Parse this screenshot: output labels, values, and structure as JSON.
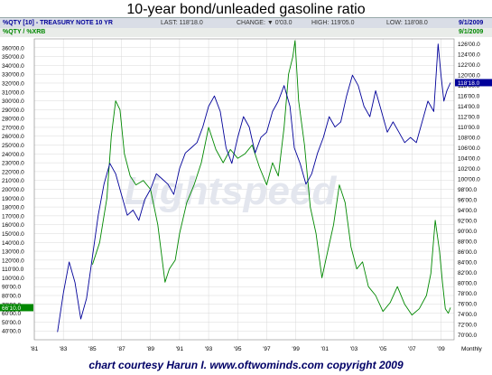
{
  "title": "10-year bond/unleaded gasoline ratio",
  "header": {
    "symbol": "%QTY [10] - TREASURY NOTE 10 YR",
    "last": "LAST: 118'18.0",
    "change": "CHANGE: ▼ 0'03.0",
    "high": "HIGH: 119'05.0",
    "low": "LOW: 118'08.0",
    "date": "9/1/2009",
    "sub_symbol": "%QTY / %XRB",
    "sub_date": "9/1/2009"
  },
  "watermark": "Lightspeed",
  "footer": "chart courtesy Harun I.  www.oftwominds.com  copyright 2009",
  "colors": {
    "bond": "#000099",
    "ratio": "#008800",
    "bond_label_bg": "#000099",
    "ratio_label_bg": "#008800"
  },
  "chart_data": {
    "type": "line",
    "x_tick_labels": [
      "'81",
      "'83",
      "'85",
      "'87",
      "'89",
      "'91",
      "'93",
      "'95",
      "'97",
      "'99",
      "'01",
      "'03",
      "'05",
      "'07",
      "'09",
      "Monthly"
    ],
    "x_tick_years": [
      1981,
      1983,
      1985,
      1987,
      1989,
      1991,
      1993,
      1995,
      1997,
      1999,
      2001,
      2003,
      2005,
      2007,
      2009
    ],
    "x_range": [
      1981,
      2009.9
    ],
    "left_axis": {
      "ylim": [
        30,
        370
      ],
      "tick_labels": [
        "360'00.0",
        "350'00.0",
        "340'00.0",
        "330'00.0",
        "320'00.0",
        "310'00.0",
        "300'00.0",
        "290'00.0",
        "280'00.0",
        "270'00.0",
        "260'00.0",
        "250'00.0",
        "240'00.0",
        "230'00.0",
        "220'00.0",
        "210'00.0",
        "200'00.0",
        "190'00.0",
        "180'00.0",
        "170'00.0",
        "160'00.0",
        "150'00.0",
        "140'00.0",
        "130'00.0",
        "120'00.0",
        "110'00.0",
        "100'00.0",
        "90'00.0",
        "80'00.0",
        "70'00.0",
        "60'00.0",
        "50'00.0",
        "40'00.0"
      ],
      "tick_values": [
        360,
        350,
        340,
        330,
        320,
        310,
        300,
        290,
        280,
        270,
        260,
        250,
        240,
        230,
        220,
        210,
        200,
        190,
        180,
        170,
        160,
        150,
        140,
        130,
        120,
        110,
        100,
        90,
        80,
        70,
        60,
        50,
        40
      ],
      "last_value_label": "66'10.0",
      "last_value": 66.3
    },
    "right_axis": {
      "ylim": [
        69,
        127
      ],
      "tick_labels": [
        "126'00.0",
        "124'00.0",
        "122'00.0",
        "120'00.0",
        "118'00.0",
        "116'00.0",
        "114'00.0",
        "112'00.0",
        "110'00.0",
        "108'00.0",
        "106'00.0",
        "104'00.0",
        "102'00.0",
        "100'00.0",
        "98'00.0",
        "96'00.0",
        "94'00.0",
        "92'00.0",
        "90'00.0",
        "88'00.0",
        "86'00.0",
        "84'00.0",
        "82'00.0",
        "80'00.0",
        "78'00.0",
        "76'00.0",
        "74'00.0",
        "72'00.0",
        "70'00.0"
      ],
      "tick_values": [
        126,
        124,
        122,
        120,
        118,
        116,
        114,
        112,
        110,
        108,
        106,
        104,
        102,
        100,
        98,
        96,
        94,
        92,
        90,
        88,
        86,
        84,
        82,
        80,
        78,
        76,
        74,
        72,
        70
      ],
      "last_value_label": "118'18.0",
      "last_value": 118.56
    },
    "series": [
      {
        "name": "%QTY [10] - TREASURY NOTE 10 YR",
        "axis": "right",
        "x": [
          1982.6,
          1983.0,
          1983.4,
          1983.8,
          1984.2,
          1984.6,
          1985.0,
          1985.4,
          1985.8,
          1986.2,
          1986.6,
          1987.0,
          1987.4,
          1987.8,
          1988.2,
          1988.6,
          1989.0,
          1989.4,
          1989.8,
          1990.2,
          1990.6,
          1991.0,
          1991.4,
          1991.8,
          1992.2,
          1992.6,
          1993.0,
          1993.4,
          1993.8,
          1994.2,
          1994.6,
          1995.0,
          1995.4,
          1995.8,
          1996.2,
          1996.6,
          1997.0,
          1997.4,
          1997.8,
          1998.2,
          1998.6,
          1998.9,
          1999.3,
          1999.7,
          2000.1,
          2000.5,
          2000.9,
          2001.3,
          2001.7,
          2002.1,
          2002.5,
          2002.9,
          2003.3,
          2003.7,
          2004.1,
          2004.5,
          2004.9,
          2005.3,
          2005.7,
          2006.1,
          2006.5,
          2006.9,
          2007.3,
          2007.7,
          2008.1,
          2008.5,
          2008.8,
          2009.0,
          2009.2,
          2009.4,
          2009.65
        ],
        "y": [
          70.5,
          78,
          84,
          80,
          73,
          77,
          85,
          93,
          99,
          103,
          101,
          97,
          93,
          94,
          92,
          96,
          98,
          101,
          100,
          99,
          97,
          102,
          105,
          106,
          107,
          110,
          114,
          116,
          113,
          106,
          103,
          108,
          112,
          110,
          105,
          108,
          109,
          113,
          115,
          118,
          114,
          106,
          103,
          99,
          101,
          105,
          108,
          112,
          110,
          111,
          116,
          120,
          118,
          114,
          112,
          117,
          113,
          109,
          111,
          109,
          107,
          108,
          107,
          111,
          115,
          113,
          126,
          120,
          115,
          117,
          118.56
        ]
      },
      {
        "name": "%QTY / %XRB",
        "axis": "left",
        "x": [
          1985.0,
          1985.5,
          1986.0,
          1986.3,
          1986.6,
          1986.9,
          1987.2,
          1987.6,
          1988.0,
          1988.5,
          1989.0,
          1989.5,
          1990.0,
          1990.3,
          1990.7,
          1991.0,
          1991.5,
          1992.0,
          1992.5,
          1993.0,
          1993.5,
          1994.0,
          1994.5,
          1995.0,
          1995.5,
          1996.0,
          1996.5,
          1997.0,
          1997.4,
          1997.8,
          1998.2,
          1998.5,
          1998.8,
          1998.95,
          1999.2,
          1999.6,
          2000.0,
          2000.4,
          2000.8,
          2001.2,
          2001.6,
          2002.0,
          2002.4,
          2002.8,
          2003.2,
          2003.6,
          2004.0,
          2004.5,
          2005.0,
          2005.5,
          2006.0,
          2006.5,
          2007.0,
          2007.5,
          2008.0,
          2008.3,
          2008.6,
          2008.9,
          2009.1,
          2009.3,
          2009.5,
          2009.65
        ],
        "y": [
          115,
          140,
          190,
          260,
          300,
          290,
          240,
          215,
          205,
          210,
          200,
          160,
          95,
          110,
          120,
          150,
          185,
          205,
          230,
          270,
          245,
          230,
          245,
          235,
          240,
          250,
          225,
          205,
          230,
          215,
          270,
          330,
          350,
          368,
          300,
          250,
          180,
          150,
          100,
          130,
          160,
          205,
          185,
          135,
          110,
          118,
          90,
          80,
          62,
          72,
          90,
          70,
          58,
          65,
          80,
          105,
          165,
          130,
          95,
          65,
          60,
          66.3
        ]
      }
    ],
    "grid": true,
    "legend": "none"
  }
}
